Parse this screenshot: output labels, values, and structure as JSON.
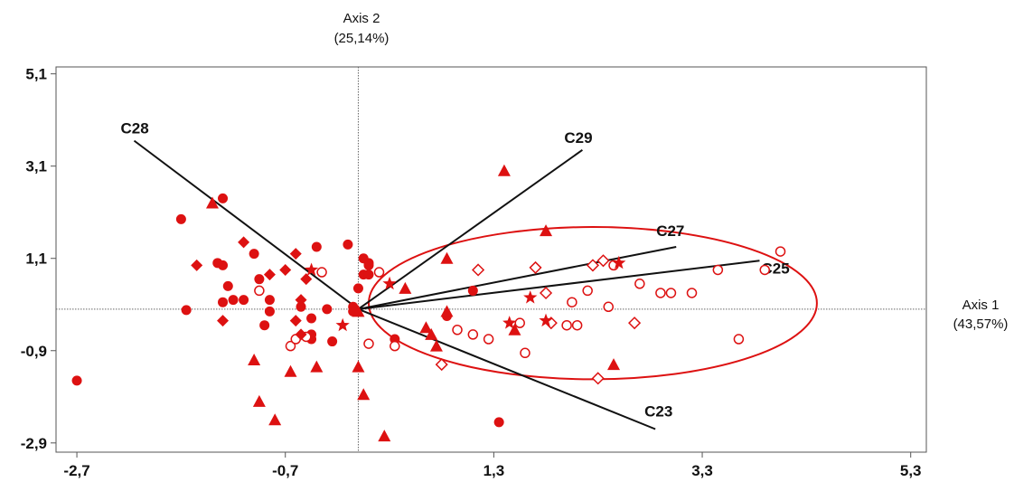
{
  "chart_data": {
    "type": "scatter",
    "xlim": [
      -2.9,
      5.45
    ],
    "ylim": [
      -3.1,
      5.25
    ],
    "x_ticks": [
      -2.7,
      -0.7,
      1.3,
      3.3,
      5.3
    ],
    "x_tick_labels": [
      "-2,7",
      "-0,7",
      "1,3",
      "3,3",
      "5,3"
    ],
    "y_ticks": [
      5.1,
      3.1,
      1.1,
      -0.9,
      -2.9
    ],
    "y_tick_labels": [
      "5,1",
      "3,1",
      "1,1",
      "-0,9",
      "-2,9"
    ],
    "axis1": {
      "title": "Axis 1",
      "subtitle": "(43,57%)"
    },
    "axis2": {
      "title": "Axis 2",
      "subtitle": "(25,14%)"
    },
    "grid": false,
    "marker_color": "#dd1111",
    "vectors": [
      {
        "label": "C28",
        "x": -2.15,
        "y": 3.65
      },
      {
        "label": "C29",
        "x": 2.15,
        "y": 3.45
      },
      {
        "label": "C27",
        "x": 3.05,
        "y": 1.35
      },
      {
        "label": "C25",
        "x": 3.85,
        "y": 1.05
      },
      {
        "label": "C23",
        "x": 2.85,
        "y": -2.6
      }
    ],
    "ellipse": {
      "cx": 2.25,
      "cy": 0.13,
      "rx": 2.15,
      "ry": 1.65
    },
    "series": [
      {
        "marker": "filled-circle",
        "points": [
          [
            -2.7,
            -1.55
          ],
          [
            -1.7,
            1.95
          ],
          [
            -1.65,
            -0.02
          ],
          [
            -1.3,
            2.4
          ],
          [
            -1.25,
            0.5
          ],
          [
            -1.3,
            0.95
          ],
          [
            -1.0,
            1.2
          ],
          [
            -1.35,
            1.0
          ],
          [
            -1.2,
            0.2
          ],
          [
            -1.3,
            0.15
          ],
          [
            -0.95,
            0.65
          ],
          [
            -1.1,
            0.2
          ],
          [
            -0.9,
            -0.35
          ],
          [
            -0.85,
            -0.05
          ],
          [
            -0.55,
            0.05
          ],
          [
            -0.45,
            -0.55
          ],
          [
            -0.45,
            -0.2
          ],
          [
            -0.4,
            1.35
          ],
          [
            -0.45,
            -0.65
          ],
          [
            -0.3,
            0.0
          ],
          [
            -0.25,
            -0.7
          ],
          [
            -0.85,
            0.2
          ],
          [
            -0.1,
            1.4
          ],
          [
            -0.05,
            -0.05
          ],
          [
            0.0,
            0.45
          ],
          [
            -0.05,
            0.05
          ],
          [
            0.1,
            1.0
          ],
          [
            0.05,
            0.75
          ],
          [
            0.1,
            0.95
          ],
          [
            0.1,
            0.75
          ],
          [
            0.35,
            -0.65
          ],
          [
            0.85,
            -0.15
          ],
          [
            0.05,
            1.1
          ],
          [
            1.1,
            0.4
          ],
          [
            1.35,
            -2.45
          ]
        ]
      },
      {
        "marker": "open-circle",
        "points": [
          [
            -0.95,
            0.4
          ],
          [
            -0.5,
            -0.6
          ],
          [
            -0.65,
            -0.8
          ],
          [
            -0.6,
            -0.65
          ],
          [
            -0.35,
            0.8
          ],
          [
            0.2,
            0.8
          ],
          [
            0.1,
            -0.75
          ],
          [
            0.35,
            -0.8
          ],
          [
            0.95,
            -0.45
          ],
          [
            1.1,
            -0.55
          ],
          [
            1.25,
            -0.65
          ],
          [
            1.55,
            -0.3
          ],
          [
            1.6,
            -0.95
          ],
          [
            2.0,
            -0.35
          ],
          [
            2.05,
            0.15
          ],
          [
            2.1,
            -0.35
          ],
          [
            2.2,
            0.4
          ],
          [
            2.4,
            0.05
          ],
          [
            2.45,
            0.95
          ],
          [
            2.7,
            0.55
          ],
          [
            2.9,
            0.35
          ],
          [
            3.0,
            0.35
          ],
          [
            3.2,
            0.35
          ],
          [
            3.45,
            0.85
          ],
          [
            3.65,
            -0.65
          ],
          [
            3.9,
            0.85
          ],
          [
            4.05,
            1.25
          ]
        ]
      },
      {
        "marker": "filled-diamond",
        "points": [
          [
            -1.55,
            0.95
          ],
          [
            -1.3,
            -0.25
          ],
          [
            -1.1,
            1.45
          ],
          [
            -0.85,
            0.75
          ],
          [
            -0.7,
            0.85
          ],
          [
            -0.6,
            1.2
          ],
          [
            -0.55,
            0.2
          ],
          [
            -0.55,
            -0.55
          ],
          [
            -0.6,
            -0.25
          ],
          [
            -0.5,
            0.65
          ]
        ]
      },
      {
        "marker": "open-diamond",
        "points": [
          [
            0.8,
            -1.2
          ],
          [
            1.15,
            0.85
          ],
          [
            1.7,
            0.9
          ],
          [
            1.8,
            0.35
          ],
          [
            1.85,
            -0.3
          ],
          [
            2.25,
            0.95
          ],
          [
            2.35,
            1.05
          ],
          [
            2.3,
            -1.5
          ],
          [
            2.65,
            -0.3
          ]
        ]
      },
      {
        "marker": "filled-triangle",
        "points": [
          [
            -1.4,
            2.3
          ],
          [
            -1.0,
            -1.1
          ],
          [
            -0.95,
            -2.0
          ],
          [
            -0.8,
            -2.4
          ],
          [
            -0.65,
            -1.35
          ],
          [
            -0.4,
            -1.25
          ],
          [
            0.0,
            -1.25
          ],
          [
            0.0,
            -0.05
          ],
          [
            0.05,
            -1.85
          ],
          [
            0.25,
            -2.75
          ],
          [
            0.45,
            0.45
          ],
          [
            0.65,
            -0.4
          ],
          [
            0.7,
            -0.55
          ],
          [
            0.75,
            -0.8
          ],
          [
            0.85,
            1.1
          ],
          [
            0.85,
            -0.05
          ],
          [
            1.4,
            3.0
          ],
          [
            1.5,
            -0.45
          ],
          [
            1.8,
            1.7
          ],
          [
            2.45,
            -1.2
          ]
        ]
      },
      {
        "marker": "star",
        "points": [
          [
            -0.45,
            0.85
          ],
          [
            -0.15,
            -0.35
          ],
          [
            0.3,
            0.55
          ],
          [
            1.45,
            -0.3
          ],
          [
            1.65,
            0.25
          ],
          [
            1.8,
            -0.25
          ],
          [
            2.5,
            1.0
          ]
        ]
      }
    ]
  }
}
